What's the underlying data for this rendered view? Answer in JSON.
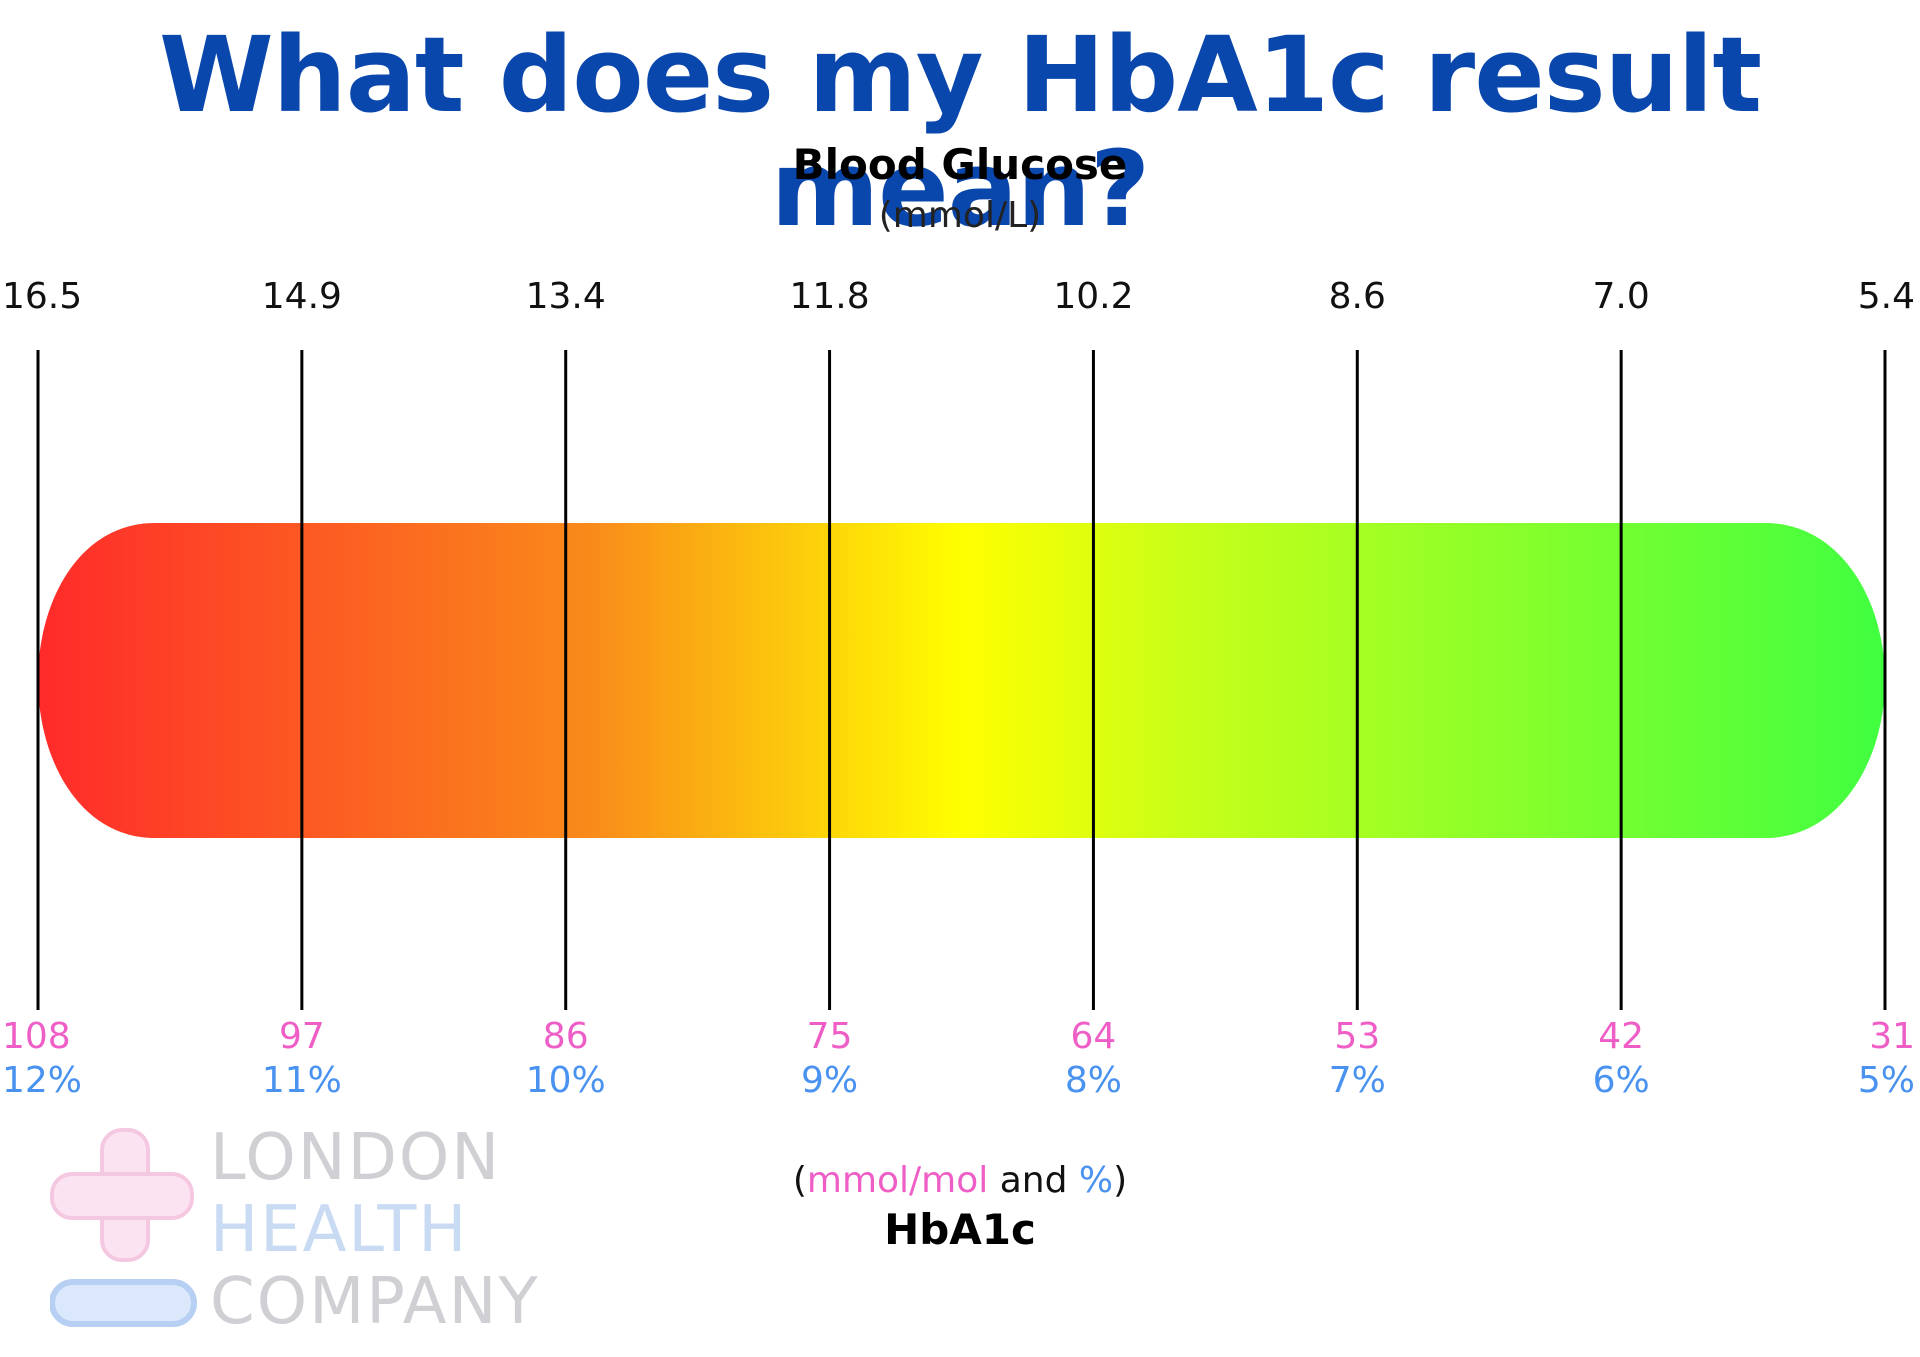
{
  "title": "What does my HbA1c result mean?",
  "top_axis": {
    "label": "Blood Glucose",
    "unit": "(mmol/L)"
  },
  "bottom_axis": {
    "label": "HbA1c",
    "unit_prefix": "(",
    "unit_mmol": "mmol/mol",
    "unit_and": " and ",
    "unit_pct": "%",
    "unit_suffix": ")"
  },
  "colors": {
    "title": "#0a47ad",
    "mmol_mol": "#ee5ec6",
    "percent": "#4a92f0",
    "gradient": [
      "#ff2a2a",
      "#f98b1a",
      "#ffff00",
      "#c8ff18",
      "#40ff40"
    ]
  },
  "logo": {
    "line1": "LONDON",
    "line2": "HEALTH",
    "line3": "COMPANY"
  },
  "chart_data": {
    "type": "bar",
    "orientation": "horizontal gradient scale, red (high) to green (low)",
    "ticks": [
      {
        "glucose": "16.5",
        "mmol_mol": "108",
        "percent": "12%"
      },
      {
        "glucose": "14.9",
        "mmol_mol": "97",
        "percent": "11%"
      },
      {
        "glucose": "13.4",
        "mmol_mol": "86",
        "percent": "10%"
      },
      {
        "glucose": "11.8",
        "mmol_mol": "75",
        "percent": "9%"
      },
      {
        "glucose": "10.2",
        "mmol_mol": "64",
        "percent": "8%"
      },
      {
        "glucose": "8.6",
        "mmol_mol": "53",
        "percent": "7%"
      },
      {
        "glucose": "7.0",
        "mmol_mol": "42",
        "percent": "6%"
      },
      {
        "glucose": "5.4",
        "mmol_mol": "31",
        "percent": "5%"
      }
    ],
    "xlabel_top": "Blood Glucose",
    "xlabel_bottom": "HbA1c",
    "xlim_percent": [
      12,
      5
    ]
  }
}
